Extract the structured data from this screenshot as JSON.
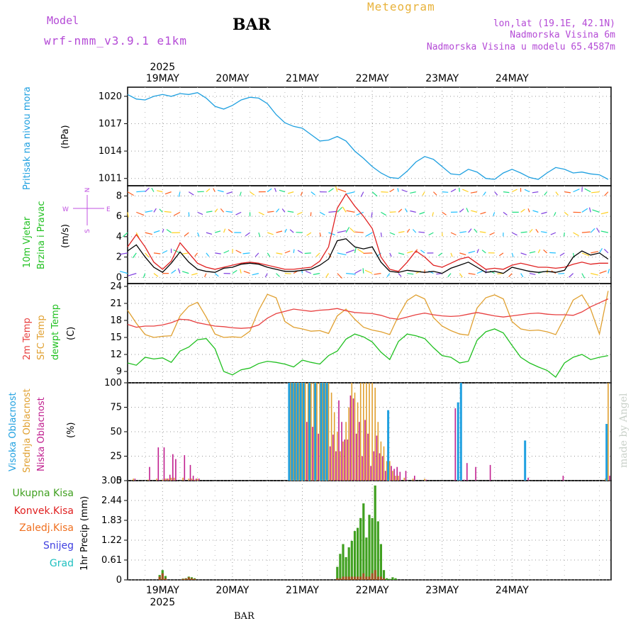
{
  "header": {
    "model_label": "Model",
    "model_name": "wrf-nmm_v3.9.1  e1km",
    "station": "BAR",
    "product": "Meteogram",
    "location": "lon,lat (19.1E, 42.1N)",
    "altitude": "Nadmorska Visina 6m",
    "model_altitude": "Nadmorska Visina u modelu 65.4587m"
  },
  "footer": {
    "station": "BAR",
    "credit": "made by Angel"
  },
  "time_axis": {
    "year": "2025",
    "days": [
      "19MAY",
      "20MAY",
      "21MAY",
      "22MAY",
      "23MAY",
      "24MAY"
    ]
  },
  "colors": {
    "pressure": "#1fa0e0",
    "wind_speed": "#000000",
    "gust": "#e02020",
    "t2m": "#e84040",
    "tsfc": "#e0a030",
    "dewpoint": "#20c020",
    "cloud_high": "#1fa0e0",
    "cloud_mid": "#e0a030",
    "cloud_low": "#c0208f",
    "precip_total": "#40a020",
    "precip_conv": "#e02020",
    "precip_frozen": "#f07020",
    "snow": "#4040e0",
    "hail": "#20c0c0",
    "label_pressure": "#1fa0e0",
    "label_wind1": "#20c020",
    "label_wind2": "#20c020",
    "label_wind_compass": "#c050e0"
  },
  "chart_data": [
    {
      "type": "line",
      "title": "",
      "ylabel_left": "Pritisak na nivou mora",
      "unit": "(hPa)",
      "yticks": [
        "1011",
        "1014",
        "1017",
        "1020"
      ],
      "ylim": [
        1010.2,
        1021.0
      ],
      "x_hours_from_19may00": [
        -12,
        -9,
        -6,
        -3,
        0,
        3,
        6,
        9,
        12,
        15,
        18,
        21,
        24,
        27,
        30,
        33,
        36,
        39,
        42,
        45,
        48,
        51,
        54,
        57,
        60,
        63,
        66,
        69,
        72,
        75,
        78,
        81,
        84,
        87,
        90,
        93,
        96,
        99,
        102,
        105,
        108,
        111,
        114,
        117,
        120,
        123,
        126,
        129,
        132,
        135,
        138,
        141,
        144,
        147,
        150,
        153
      ],
      "series": [
        {
          "name": "MSLP",
          "values": [
            1020.2,
            1019.7,
            1019.6,
            1020.0,
            1020.2,
            1020.0,
            1020.3,
            1020.2,
            1020.4,
            1019.8,
            1018.9,
            1018.6,
            1019.0,
            1019.6,
            1019.9,
            1019.8,
            1019.2,
            1018.0,
            1017.1,
            1016.7,
            1016.5,
            1015.8,
            1015.1,
            1015.2,
            1015.6,
            1015.1,
            1014.0,
            1013.2,
            1012.3,
            1011.6,
            1011.1,
            1011.0,
            1011.8,
            1012.8,
            1013.4,
            1013.1,
            1012.3,
            1011.5,
            1011.4,
            1012.0,
            1011.7,
            1011.0,
            1010.9,
            1011.6,
            1012.0,
            1011.6,
            1011.1,
            1010.9,
            1011.6,
            1012.2,
            1012.0,
            1011.6,
            1011.7,
            1011.5,
            1011.4,
            1010.9
          ]
        }
      ]
    },
    {
      "type": "line",
      "title": "",
      "ylabel_left": [
        "10m Vjetar",
        "Brzina i Pravac"
      ],
      "compass": [
        "N",
        "W",
        "E",
        "S"
      ],
      "unit": "(m/s)",
      "yticks": [
        "0",
        "2",
        "4",
        "6",
        "8"
      ],
      "ylim": [
        -0.6,
        9.0
      ],
      "x_hours_from_19may00": [
        -12,
        -9,
        -6,
        -3,
        0,
        3,
        6,
        9,
        12,
        15,
        18,
        21,
        24,
        27,
        30,
        33,
        36,
        39,
        42,
        45,
        48,
        51,
        54,
        57,
        60,
        63,
        66,
        69,
        72,
        75,
        78,
        81,
        84,
        87,
        90,
        93,
        96,
        99,
        102,
        105,
        108,
        111,
        114,
        117,
        120,
        123,
        126,
        129,
        132,
        135,
        138,
        141,
        144,
        147,
        150,
        153
      ],
      "series": [
        {
          "name": "wind_speed",
          "values": [
            2.6,
            3.2,
            2.0,
            1.0,
            0.5,
            1.4,
            2.5,
            1.5,
            0.8,
            0.6,
            0.5,
            0.9,
            1.0,
            1.3,
            1.4,
            1.3,
            1.0,
            0.8,
            0.6,
            0.6,
            0.7,
            0.8,
            1.2,
            1.8,
            3.6,
            3.8,
            3.0,
            2.8,
            3.0,
            1.5,
            0.6,
            0.5,
            0.7,
            0.6,
            0.5,
            0.6,
            0.4,
            0.9,
            1.2,
            1.5,
            1.0,
            0.5,
            0.6,
            0.4,
            1.0,
            0.8,
            0.6,
            0.5,
            0.6,
            0.5,
            0.7,
            2.0,
            2.6,
            2.2,
            2.4,
            1.8
          ]
        },
        {
          "name": "gust",
          "values": [
            3.0,
            4.2,
            3.0,
            1.5,
            0.8,
            1.6,
            3.4,
            2.4,
            1.4,
            1.0,
            0.8,
            1.0,
            1.2,
            1.4,
            1.5,
            1.4,
            1.2,
            1.0,
            0.8,
            0.8,
            0.9,
            1.0,
            1.6,
            3.0,
            6.8,
            8.2,
            7.0,
            6.0,
            4.8,
            2.0,
            0.8,
            0.6,
            1.5,
            2.6,
            2.0,
            1.2,
            1.0,
            1.4,
            1.8,
            2.0,
            1.4,
            0.8,
            0.9,
            0.8,
            1.2,
            1.4,
            1.2,
            1.0,
            1.0,
            0.9,
            1.0,
            1.3,
            1.5,
            1.3,
            1.4,
            1.4
          ]
        }
      ]
    },
    {
      "type": "line",
      "title": "",
      "ylabel_left": [
        "2m Temp",
        "SFC Temp",
        "dewpt Temp"
      ],
      "unit": "(C)",
      "yticks": [
        "9",
        "12",
        "15",
        "18",
        "21",
        "24"
      ],
      "ylim": [
        7.0,
        24.5
      ],
      "x_hours_from_19may00": [
        -12,
        -9,
        -6,
        -3,
        0,
        3,
        6,
        9,
        12,
        15,
        18,
        21,
        24,
        27,
        30,
        33,
        36,
        39,
        42,
        45,
        48,
        51,
        54,
        57,
        60,
        63,
        66,
        69,
        72,
        75,
        78,
        81,
        84,
        87,
        90,
        93,
        96,
        99,
        102,
        105,
        108,
        111,
        114,
        117,
        120,
        123,
        126,
        129,
        132,
        135,
        138,
        141,
        144,
        147,
        150,
        153
      ],
      "series": [
        {
          "name": "2m Temp",
          "values": [
            17.3,
            16.8,
            17.0,
            17.0,
            17.2,
            17.6,
            18.2,
            18.1,
            17.6,
            17.3,
            17.0,
            16.9,
            16.7,
            16.6,
            16.7,
            17.2,
            18.4,
            19.2,
            19.6,
            20.0,
            19.8,
            19.6,
            19.8,
            19.9,
            20.1,
            19.7,
            19.4,
            19.3,
            19.2,
            18.9,
            18.4,
            18.2,
            18.6,
            19.0,
            19.3,
            19.0,
            18.8,
            18.7,
            18.8,
            19.1,
            19.4,
            19.1,
            18.8,
            18.6,
            18.8,
            19.0,
            19.2,
            19.3,
            19.1,
            19.0,
            19.0,
            18.9,
            19.5,
            20.4,
            21.1,
            21.8
          ]
        },
        {
          "name": "SFC Temp",
          "values": [
            19.8,
            17.5,
            15.5,
            15.0,
            15.2,
            15.3,
            18.8,
            20.5,
            21.2,
            18.6,
            15.6,
            15.0,
            15.1,
            15.0,
            16.1,
            19.8,
            22.6,
            22.0,
            17.8,
            16.8,
            16.5,
            16.1,
            16.2,
            15.7,
            18.8,
            20.0,
            18.2,
            16.8,
            16.3,
            16.0,
            15.5,
            18.8,
            21.5,
            22.5,
            21.8,
            18.5,
            17.0,
            16.2,
            15.6,
            15.4,
            20.2,
            22.0,
            22.5,
            21.8,
            17.8,
            16.5,
            16.2,
            16.3,
            16.0,
            15.5,
            18.5,
            21.6,
            22.5,
            20.0,
            15.6,
            23.2
          ]
        },
        {
          "name": "dewpt Temp",
          "values": [
            10.5,
            10.1,
            11.5,
            11.2,
            11.4,
            10.6,
            12.6,
            13.3,
            14.6,
            14.8,
            13.0,
            9.0,
            8.4,
            9.3,
            9.6,
            10.4,
            10.8,
            10.6,
            10.3,
            9.8,
            11.0,
            10.6,
            10.3,
            11.8,
            12.6,
            14.7,
            15.6,
            15.1,
            14.2,
            12.4,
            11.1,
            14.3,
            15.6,
            15.3,
            14.8,
            13.2,
            11.8,
            11.5,
            10.5,
            10.8,
            14.5,
            16.0,
            16.5,
            15.8,
            13.6,
            11.5,
            10.5,
            9.8,
            9.2,
            8.0,
            10.5,
            11.5,
            12.0,
            11.1,
            11.5,
            11.8
          ]
        }
      ]
    },
    {
      "type": "bar",
      "title": "",
      "ylabel_left": [
        "Visoka Oblacnost",
        "Srednja Oblacnost",
        "Niska Oblacnost"
      ],
      "unit": "(%)",
      "yticks": [
        "0",
        "25",
        "50",
        "75",
        "100"
      ],
      "ylim": [
        0,
        100
      ],
      "x_hours_from_19may00": [
        -10,
        -5,
        -2,
        0,
        1,
        2,
        3,
        4,
        7,
        9,
        10,
        11,
        12,
        44,
        45,
        46,
        47,
        48,
        49,
        50,
        51,
        52,
        53,
        54,
        55,
        56,
        57,
        58,
        59,
        60,
        61,
        62,
        63,
        64,
        65,
        66,
        67,
        68,
        69,
        70,
        71,
        72,
        73,
        74,
        75,
        76,
        77,
        78,
        79,
        80,
        81,
        83,
        86,
        90,
        100,
        102,
        103,
        104,
        107,
        112,
        125,
        137,
        152,
        153
      ],
      "series": [
        {
          "name": "Visoka Oblacnost",
          "values": [
            0,
            0,
            0,
            0,
            0,
            0,
            0,
            0,
            0,
            0,
            0,
            0,
            0,
            100,
            100,
            100,
            100,
            100,
            100,
            0,
            100,
            0,
            100,
            0,
            100,
            100,
            100,
            0,
            0,
            0,
            0,
            0,
            0,
            0,
            0,
            0,
            0,
            0,
            0,
            0,
            0,
            0,
            0,
            0,
            0,
            0,
            0,
            72,
            0,
            0,
            0,
            0,
            0,
            0,
            0,
            80,
            100,
            0,
            0,
            0,
            41,
            0,
            0,
            58
          ]
        },
        {
          "name": "Srednja Oblacnost",
          "values": [
            2,
            1,
            2,
            1,
            2,
            2,
            3,
            3,
            3,
            2,
            2,
            1,
            2,
            100,
            100,
            100,
            100,
            100,
            100,
            100,
            100,
            100,
            100,
            100,
            100,
            100,
            100,
            90,
            70,
            50,
            30,
            40,
            60,
            75,
            100,
            90,
            80,
            100,
            100,
            100,
            100,
            100,
            95,
            60,
            40,
            35,
            20,
            20,
            10,
            5,
            5,
            3,
            2,
            2,
            0,
            0,
            0,
            0,
            0,
            0,
            0,
            0,
            2,
            100
          ]
        },
        {
          "name": "Niska Oblacnost",
          "values": [
            2,
            14,
            34,
            34,
            2,
            6,
            27,
            22,
            26,
            16,
            5,
            2,
            2,
            100,
            100,
            90,
            30,
            100,
            60,
            100,
            55,
            30,
            48,
            35,
            25,
            30,
            35,
            47,
            30,
            82,
            60,
            42,
            42,
            87,
            84,
            48,
            60,
            25,
            62,
            48,
            15,
            30,
            46,
            28,
            25,
            10,
            22,
            15,
            12,
            14,
            9,
            10,
            5,
            1,
            74,
            34,
            1,
            18,
            14,
            16,
            3,
            5,
            3,
            5
          ]
        }
      ]
    },
    {
      "type": "bar",
      "title": "",
      "ylabel_left": [
        "Ukupna Kisa",
        "Konvek.Kisa",
        "Zaledj.Kisa",
        "Snijeg",
        "Grad"
      ],
      "ylabel_right": "1hr Precip (mm)",
      "yticks": [
        "0",
        "0.61",
        "1.22",
        "1.83",
        "2.44",
        "3.05"
      ],
      "ylim": [
        0,
        3.05
      ],
      "x_hours_from_19may00": [
        -1,
        0,
        1,
        2,
        3,
        7,
        8,
        9,
        10,
        11,
        60,
        61,
        62,
        63,
        64,
        65,
        66,
        67,
        68,
        69,
        70,
        71,
        72,
        73,
        74,
        75,
        76,
        77,
        78,
        79,
        80,
        81,
        82,
        83,
        84,
        85,
        86,
        87,
        88,
        89,
        90,
        91
      ],
      "series": [
        {
          "name": "Ukupna Kisa",
          "values": [
            0.15,
            0.3,
            0.12,
            0.0,
            0.0,
            0.04,
            0.05,
            0.1,
            0.08,
            0.05,
            0.4,
            0.8,
            1.1,
            0.7,
            1.0,
            1.2,
            1.5,
            1.6,
            1.9,
            2.35,
            1.3,
            2.0,
            1.9,
            2.9,
            1.8,
            1.1,
            0.3,
            0.05,
            0.03,
            0.08,
            0.05,
            0,
            0,
            0,
            0,
            0,
            0,
            0,
            0,
            0,
            0,
            0
          ]
        },
        {
          "name": "Konvek.Kisa",
          "values": [
            0.1,
            0.2,
            0.05,
            0,
            0,
            0.03,
            0.04,
            0.08,
            0.05,
            0.03,
            0.05,
            0.05,
            0.1,
            0.1,
            0.1,
            0.1,
            0.1,
            0.1,
            0.1,
            0.2,
            0.1,
            0.1,
            0.2,
            0.3,
            0.1,
            0.1,
            0.05,
            0,
            0,
            0,
            0,
            0,
            0,
            0,
            0,
            0,
            0,
            0,
            0,
            0,
            0,
            0
          ]
        }
      ]
    }
  ]
}
